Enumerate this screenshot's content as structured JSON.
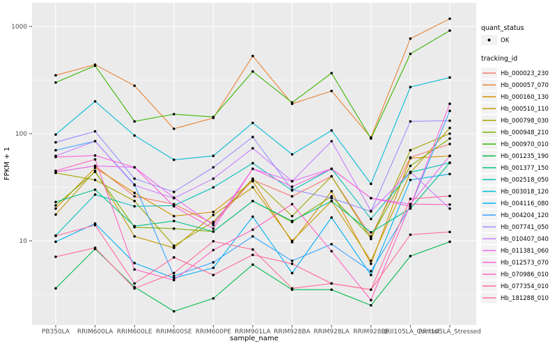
{
  "figure": {
    "background": "#FFFFFF",
    "panel_background": "#EBEBEB",
    "grid_color": "#FFFFFF",
    "tick_color": "#333333",
    "tick_label_color": "#4D4D4D",
    "title_color": "#000000",
    "legend_key_background": "#F2F2F2",
    "point_color": "#000000"
  },
  "chart_data": {
    "type": "line",
    "title": "",
    "xlabel": "sample_name",
    "ylabel": "FPKM + 1",
    "y_axis": {
      "scale": "log10",
      "ticks": [
        10,
        100,
        1000
      ],
      "tick_labels": [
        "10",
        "100",
        "1000"
      ],
      "minor_breaks": [
        3.16,
        31.6,
        316
      ],
      "range": [
        1.6,
        1660
      ],
      "grid": true
    },
    "x_axis": {
      "categories": [
        "PB350LA",
        "RRIM600LA",
        "RRIM600LE",
        "RRIM600SE",
        "RRIM600PE",
        "RRIM901LA",
        "RRIM928BA",
        "RRIM928LA",
        "RRIM928LE",
        "RRII105LA_Control",
        "RRII105LA_Stressed"
      ],
      "grid": true
    },
    "legend": {
      "position": "right",
      "quant_title": "quant_status",
      "quant_items": [
        {
          "label": "OK",
          "marker": "point"
        }
      ],
      "series_title": "tracking_id"
    },
    "series": [
      {
        "name": "Hb_000023_230",
        "color": "#F8766D",
        "values": [
          44,
          50,
          26,
          22,
          14.5,
          37,
          26,
          40,
          11,
          60,
          80
        ]
      },
      {
        "name": "Hb_000057_070",
        "color": "#EA8331",
        "values": [
          350,
          440,
          280,
          111,
          140,
          530,
          190,
          250,
          92,
          770,
          1180
        ]
      },
      {
        "name": "Hb_000160_130",
        "color": "#D89000",
        "values": [
          20,
          48,
          28,
          17,
          18.6,
          36,
          9.7,
          29,
          6.1,
          59,
          62
        ]
      },
      {
        "name": "Hb_000510_110",
        "color": "#C09B00",
        "values": [
          17.6,
          45,
          11,
          8.6,
          17.4,
          31.6,
          10,
          23.5,
          6.5,
          43,
          113
        ]
      },
      {
        "name": "Hb_000798_030",
        "color": "#A3A500",
        "values": [
          43,
          37,
          23.5,
          9,
          15,
          38,
          17,
          40,
          10.4,
          70,
          100
        ]
      },
      {
        "name": "Hb_000948_210",
        "color": "#7CAE00",
        "values": [
          21.4,
          44,
          13.4,
          13,
          12.2,
          23.5,
          15,
          26,
          10.8,
          50,
          90
        ]
      },
      {
        "name": "Hb_000970_010",
        "color": "#39B600",
        "values": [
          300,
          430,
          130,
          152,
          143,
          380,
          195,
          367,
          90,
          555,
          915
        ]
      },
      {
        "name": "Hb_001235_190",
        "color": "#00BB4E",
        "values": [
          3.6,
          8.4,
          3.7,
          2.2,
          2.9,
          6,
          3.5,
          3.5,
          2.5,
          7.2,
          9.8
        ]
      },
      {
        "name": "Hb_001377_150",
        "color": "#00C087",
        "values": [
          23,
          30,
          13.7,
          15.3,
          12.2,
          23.5,
          15.3,
          23.5,
          12,
          20,
          53.5
        ]
      },
      {
        "name": "Hb_002518_050",
        "color": "#00C0B8",
        "values": [
          11.2,
          27,
          21,
          21.3,
          31.5,
          53,
          29.5,
          47,
          16,
          43.5,
          53.5
        ]
      },
      {
        "name": "Hb_003018_120",
        "color": "#00BCD8",
        "values": [
          98,
          200,
          96,
          57,
          62,
          126,
          64,
          107,
          34,
          272,
          334
        ]
      },
      {
        "name": "Hb_004116_080",
        "color": "#00B0F6",
        "values": [
          9.8,
          14.5,
          6.2,
          4.5,
          5.6,
          16.8,
          5,
          16.5,
          4.8,
          37,
          42
        ]
      },
      {
        "name": "Hb_004204_120",
        "color": "#35A2FF",
        "values": [
          70,
          85,
          33.5,
          4.7,
          6.3,
          11,
          6.5,
          9.3,
          5.2,
          21,
          163
        ]
      },
      {
        "name": "Hb_007741_050",
        "color": "#9590FF",
        "values": [
          83,
          105,
          38,
          28.6,
          48.5,
          93,
          30,
          25,
          18.8,
          130,
          132
        ]
      },
      {
        "name": "Hb_010407_040",
        "color": "#C77CFF",
        "values": [
          62,
          85,
          33,
          25,
          38,
          73,
          36,
          85,
          19,
          44,
          20
        ]
      },
      {
        "name": "Hb_011381_060",
        "color": "#E76BF3",
        "values": [
          44,
          50,
          48.5,
          25.3,
          14,
          47,
          36,
          47,
          25,
          22,
          62
        ]
      },
      {
        "name": "Hb_012573_070",
        "color": "#FA62DB",
        "values": [
          60.5,
          62.5,
          48.5,
          21,
          13,
          47,
          32,
          47,
          25,
          21,
          190
        ]
      },
      {
        "name": "Hb_070986_010",
        "color": "#FF61C2",
        "values": [
          45,
          57.5,
          5.4,
          4.3,
          8.2,
          12.7,
          22,
          8,
          2.8,
          22,
          21.8
        ]
      },
      {
        "name": "Hb_077354_010",
        "color": "#FF689E",
        "values": [
          11.1,
          14,
          4,
          7,
          4.8,
          7.4,
          6.1,
          4,
          3.5,
          24.6,
          26.2
        ]
      },
      {
        "name": "Hb_181288_010",
        "color": "#FF6C91",
        "values": [
          7.1,
          8.6,
          3.6,
          5,
          9.9,
          8.3,
          3.6,
          4,
          3.5,
          11.4,
          12.1
        ]
      }
    ]
  }
}
